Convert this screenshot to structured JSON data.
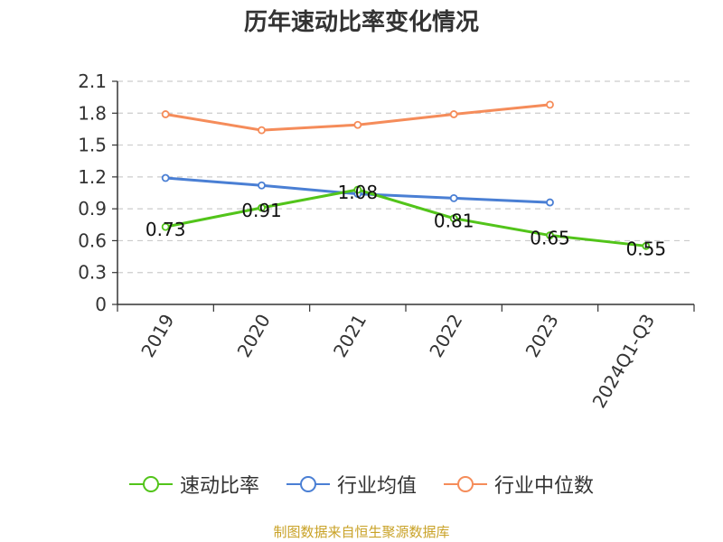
{
  "chart_data": {
    "type": "line",
    "title": "历年速动比率变化情况",
    "categories": [
      "2019",
      "2020",
      "2021",
      "2022",
      "2023",
      "2024Q1-Q3"
    ],
    "ylim": [
      0,
      2.1
    ],
    "yticks": [
      "0",
      "0.3",
      "0.6",
      "0.9",
      "1.2",
      "1.5",
      "1.8",
      "2.1"
    ],
    "grid": true,
    "legend_position": "bottom",
    "series": [
      {
        "name": "速动比率",
        "color": "#52c41a",
        "values": [
          0.73,
          0.91,
          1.08,
          0.81,
          0.65,
          0.55
        ],
        "labels": [
          "0.73",
          "0.91",
          "1.08",
          "0.81",
          "0.65",
          "0.55"
        ]
      },
      {
        "name": "行业均值",
        "color": "#4a7fd4",
        "values": [
          1.19,
          1.12,
          1.04,
          1.0,
          0.96,
          null
        ]
      },
      {
        "name": "行业中位数",
        "color": "#f58c5a",
        "values": [
          1.79,
          1.64,
          1.69,
          1.79,
          1.88,
          null
        ]
      }
    ]
  },
  "legend": {
    "items": [
      "速动比率",
      "行业均值",
      "行业中位数"
    ]
  },
  "source": "制图数据来自恒生聚源数据库"
}
